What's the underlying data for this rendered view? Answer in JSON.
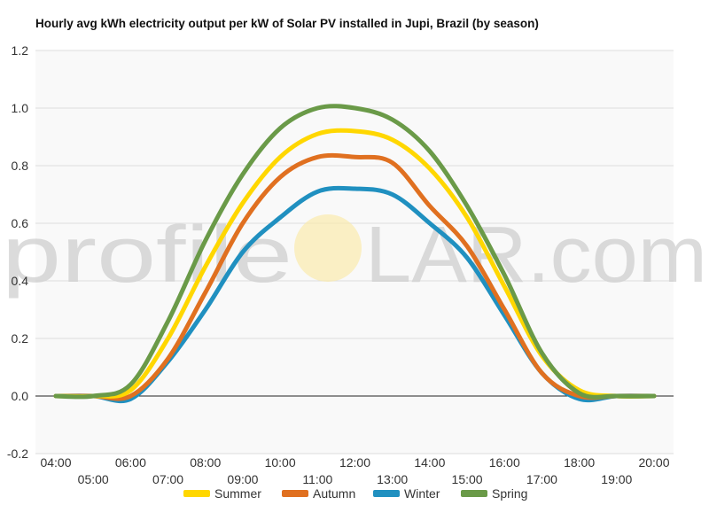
{
  "watermark": {
    "left": "profile",
    "right": "LAR.com"
  },
  "colors": {
    "Summer": "#ffd700",
    "Autumn": "#e07020",
    "Winter": "#2090c0",
    "Spring": "#6a9a48",
    "grid": "#dddddd",
    "zero_line": "#222222",
    "plot_bg": "#f9f9f9"
  },
  "chart_data": {
    "type": "line",
    "title": "Hourly avg kWh electricity output per kW of Solar PV installed in Jupi, Brazil (by season)",
    "xlabel": "",
    "ylabel": "",
    "ylim": [
      -0.2,
      1.2
    ],
    "yticks": [
      -0.2,
      0.0,
      0.2,
      0.4,
      0.6,
      0.8,
      1.0,
      1.2
    ],
    "ytick_labels": [
      "-0.2",
      "0.0",
      "0.2",
      "0.4",
      "0.6",
      "0.8",
      "1.0",
      "1.2"
    ],
    "x": [
      "04:00",
      "05:00",
      "06:00",
      "07:00",
      "08:00",
      "09:00",
      "10:00",
      "11:00",
      "12:00",
      "13:00",
      "14:00",
      "15:00",
      "16:00",
      "17:00",
      "18:00",
      "19:00",
      "20:00"
    ],
    "grid": true,
    "legend_position": "bottom",
    "series": [
      {
        "name": "Summer",
        "values": [
          0.0,
          0.0,
          0.02,
          0.2,
          0.45,
          0.67,
          0.83,
          0.91,
          0.92,
          0.89,
          0.79,
          0.62,
          0.38,
          0.14,
          0.02,
          0.0,
          0.0
        ]
      },
      {
        "name": "Autumn",
        "values": [
          0.0,
          0.0,
          0.0,
          0.13,
          0.36,
          0.6,
          0.76,
          0.83,
          0.83,
          0.81,
          0.66,
          0.52,
          0.3,
          0.08,
          0.0,
          0.0,
          0.0
        ]
      },
      {
        "name": "Winter",
        "values": [
          0.0,
          0.0,
          -0.01,
          0.12,
          0.3,
          0.5,
          0.62,
          0.71,
          0.72,
          0.7,
          0.6,
          0.48,
          0.28,
          0.08,
          -0.01,
          0.0,
          0.0
        ]
      },
      {
        "name": "Spring",
        "values": [
          0.0,
          0.0,
          0.04,
          0.26,
          0.54,
          0.77,
          0.93,
          1.0,
          1.0,
          0.96,
          0.85,
          0.66,
          0.42,
          0.15,
          0.01,
          0.0,
          0.0
        ]
      }
    ]
  }
}
